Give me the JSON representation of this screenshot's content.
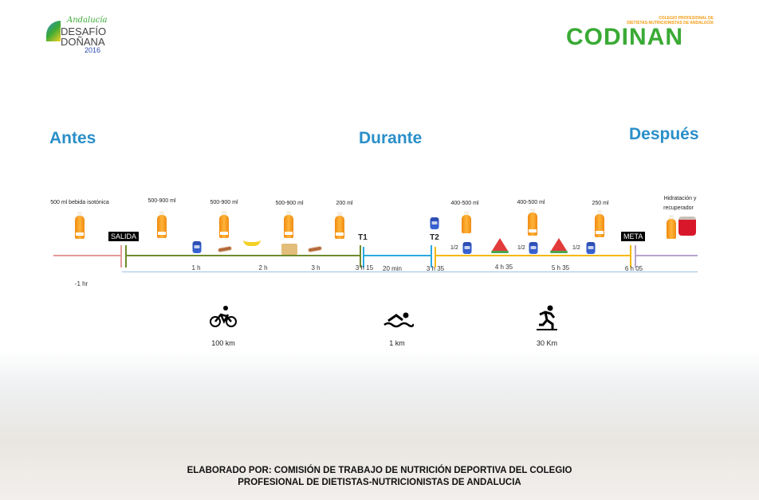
{
  "logos": {
    "left": {
      "lines": [
        "Andalucía",
        "DESAFÍO",
        "DOÑANA",
        "2016"
      ]
    },
    "right": {
      "subtitle1": "COLEGIO PROFESIONAL DE",
      "subtitle2": "DIETISTAS-NUTRICIONISTAS DE ANDALUCÍA",
      "name": "CODINAN",
      "colors": {
        "green": "#3aaa35",
        "orange": "#f39c12"
      }
    }
  },
  "phases": {
    "before": "Antes",
    "during": "Durante",
    "after": "Después"
  },
  "intake_labels": [
    "500 ml bebida isotónica",
    "500-900 ml",
    "500-900 ml",
    "500-900 ml",
    "200 ml",
    "400-500 ml",
    "400-500 ml",
    "250 ml"
  ],
  "recovery_label": [
    "Hidratación y",
    "recuperador"
  ],
  "markers": {
    "start": "SALIDA",
    "t1": "T1",
    "t2": "T2",
    "finish": "META"
  },
  "half_labels": [
    "1/2",
    "1/2",
    "1/2"
  ],
  "times": [
    "-1 hr",
    "1 h",
    "2 h",
    "3 h",
    "3 h 15",
    "20 min",
    "3 h 35",
    "4 h 35",
    "5 h 35",
    "6 h 05"
  ],
  "segments": {
    "colors": {
      "before": "#e39a9a",
      "bike": "#6e8b2e",
      "swim": "#29a9e1",
      "run": "#f5b800",
      "after": "#b9a3cc",
      "base": "#9cc3e6"
    }
  },
  "sports": [
    {
      "icon": "cycling-icon",
      "distance": "100 km"
    },
    {
      "icon": "swimming-icon",
      "distance": "1 km"
    },
    {
      "icon": "running-icon",
      "distance": "30 Km"
    }
  ],
  "footer": {
    "line1": "ELABORADO POR: COMISIÓN DE TRABAJO DE NUTRICIÓN DEPORTIVA DEL COLEGIO",
    "line2": "PROFESIONAL DE DIETISTAS-NUTRICIONISTAS DE ANDALUCIA"
  },
  "accent_color": "#2a8fc9"
}
